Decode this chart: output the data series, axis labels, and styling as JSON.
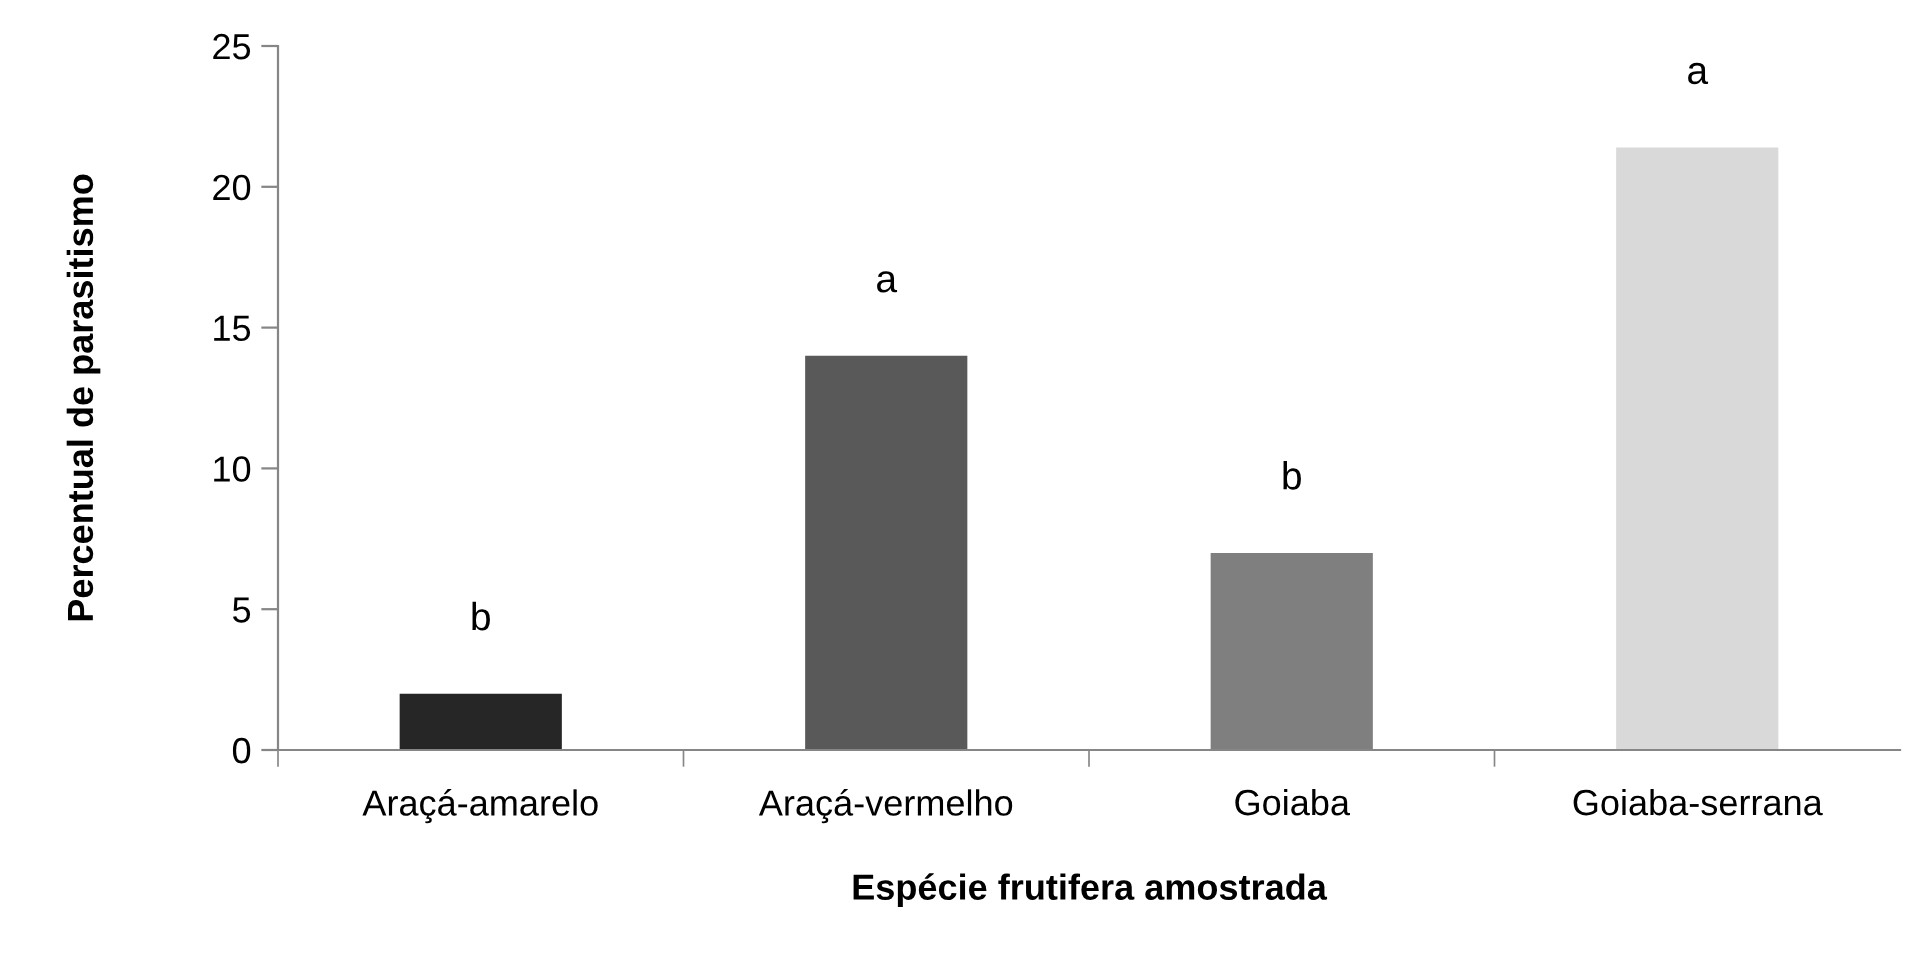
{
  "chart_data": {
    "type": "bar",
    "xlabel": "Espécie frutifera amostrada",
    "ylabel": "Percentual de parasitismo",
    "categories": [
      "Araçá-amarelo",
      "Araçá-vermelho",
      "Goiaba",
      "Goiaba-serrana"
    ],
    "values": [
      2.0,
      14.0,
      7.0,
      21.4
    ],
    "colors": [
      "#262626",
      "#595959",
      "#7f7f7f",
      "#d9d9d9"
    ],
    "ylim": [
      0,
      25
    ],
    "yticks": [
      0,
      5,
      10,
      15,
      20,
      25
    ],
    "grid": false,
    "value_labels": [
      "b",
      "a",
      "b",
      "a"
    ]
  }
}
